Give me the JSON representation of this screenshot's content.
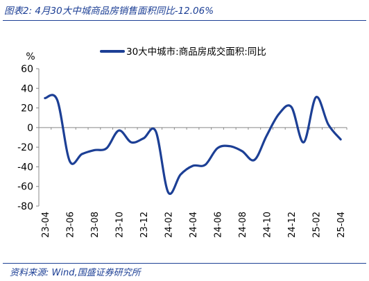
{
  "header": {
    "title": "图表2:  4月30大中城商品房销售面积同比-12.06%"
  },
  "footer": {
    "source": "资料来源:  Wind,国盛证券研究所"
  },
  "chart_data": {
    "type": "line",
    "unit_label": "%",
    "ylim": [
      -80,
      60
    ],
    "yticks": [
      -80,
      -60,
      -40,
      -20,
      0,
      20,
      40,
      60
    ],
    "x_tick_labels": [
      "23-04",
      "23-06",
      "23-08",
      "23-10",
      "23-12",
      "24-02",
      "24-04",
      "24-06",
      "24-08",
      "24-10",
      "24-12",
      "25-02",
      "25-04"
    ],
    "x": [
      "23-04",
      "23-05",
      "23-06",
      "23-07",
      "23-08",
      "23-09",
      "23-10",
      "23-11",
      "23-12",
      "24-01",
      "24-02",
      "24-03",
      "24-04",
      "24-05",
      "24-06",
      "24-07",
      "24-08",
      "24-09",
      "24-10",
      "24-11",
      "24-12",
      "25-01",
      "25-02",
      "25-03",
      "25-04"
    ],
    "grid": false,
    "legend_position": "top-right",
    "series": [
      {
        "name": "30大中城市:商品房成交面积:同比",
        "color": "#1c3f95",
        "values": [
          30,
          28,
          -34,
          -27,
          -23,
          -21,
          -3,
          -15,
          -11,
          -4,
          -66,
          -48,
          -39,
          -38,
          -21,
          -19,
          -24,
          -33,
          -8,
          14,
          21,
          -15,
          31,
          3,
          -12.06
        ]
      }
    ]
  }
}
